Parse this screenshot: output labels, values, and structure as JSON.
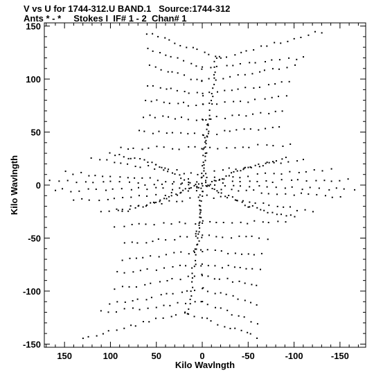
{
  "header": {
    "title": "V vs U for 1744-312.U BAND.1   Source:1744-312",
    "subtitle": "Ants * - *     Stokes I  IF# 1 - 2  Chan# 1"
  },
  "chart_data": {
    "type": "scatter",
    "title": "V vs U for 1744-312.U BAND.1   Source:1744-312",
    "subtitle": "Ants * - *     Stokes I  IF# 1 - 2  Chan# 1",
    "xlabel": "Kilo Wavlngth",
    "ylabel": "Kilo Wavlngth",
    "xlim": [
      172,
      -178
    ],
    "ylim": [
      -153,
      153
    ],
    "x_axis_reversed": true,
    "xticks": [
      150,
      100,
      50,
      0,
      -50,
      -100,
      -150
    ],
    "yticks": [
      150,
      100,
      50,
      0,
      -50,
      -100,
      -150
    ],
    "xtick_labels": [
      "150",
      "100",
      "50",
      "0",
      "-50",
      "-100",
      "-150"
    ],
    "ytick_labels": [
      "150",
      "100",
      "50",
      "0",
      "-50",
      "-100",
      "-150"
    ],
    "marker": "dot",
    "marker_color": "#000000",
    "grid": false,
    "series": [
      {
        "points_description": "uv-coverage tracks (point-symmetric pattern)",
        "tracks": [
          {
            "from": [
              60,
              143
            ],
            "to": [
              -20,
              120
            ],
            "n": 14
          },
          {
            "from": [
              -20,
              120
            ],
            "to": [
              -130,
              145
            ],
            "n": 16
          },
          {
            "from": [
              60,
              130
            ],
            "to": [
              0,
              110
            ],
            "n": 10
          },
          {
            "from": [
              0,
              110
            ],
            "to": [
              -110,
              120
            ],
            "n": 14
          },
          {
            "from": [
              58,
              112
            ],
            "to": [
              0,
              98
            ],
            "n": 10
          },
          {
            "from": [
              0,
              98
            ],
            "to": [
              -100,
              112
            ],
            "n": 14
          },
          {
            "from": [
              60,
              95
            ],
            "to": [
              0,
              85
            ],
            "n": 10
          },
          {
            "from": [
              0,
              85
            ],
            "to": [
              -95,
              98
            ],
            "n": 13
          },
          {
            "from": [
              62,
              80
            ],
            "to": [
              0,
              75
            ],
            "n": 10
          },
          {
            "from": [
              0,
              75
            ],
            "to": [
              -92,
              83
            ],
            "n": 12
          },
          {
            "from": [
              65,
              65
            ],
            "to": [
              0,
              62
            ],
            "n": 10
          },
          {
            "from": [
              0,
              62
            ],
            "to": [
              -88,
              70
            ],
            "n": 12
          },
          {
            "from": [
              70,
              50
            ],
            "to": [
              0,
              48
            ],
            "n": 10
          },
          {
            "from": [
              0,
              48
            ],
            "to": [
              -85,
              55
            ],
            "n": 12
          },
          {
            "from": [
              90,
              35
            ],
            "to": [
              0,
              35
            ],
            "n": 12
          },
          {
            "from": [
              0,
              35
            ],
            "to": [
              -95,
              38
            ],
            "n": 12
          },
          {
            "from": [
              120,
              25
            ],
            "to": [
              5,
              10
            ],
            "n": 16
          },
          {
            "from": [
              -5,
              -10
            ],
            "to": [
              -120,
              -25
            ],
            "n": 16
          },
          {
            "from": [
              150,
              12
            ],
            "to": [
              5,
              2
            ],
            "n": 18
          },
          {
            "from": [
              -5,
              -2
            ],
            "to": [
              -150,
              -12
            ],
            "n": 18
          },
          {
            "from": [
              165,
              5
            ],
            "to": [
              5,
              -1
            ],
            "n": 18
          },
          {
            "from": [
              -5,
              1
            ],
            "to": [
              -165,
              -5
            ],
            "n": 18
          },
          {
            "from": [
              160,
              -5
            ],
            "to": [
              5,
              -3
            ],
            "n": 18
          },
          {
            "from": [
              -5,
              3
            ],
            "to": [
              -160,
              5
            ],
            "n": 18
          },
          {
            "from": [
              140,
              -15
            ],
            "to": [
              5,
              -6
            ],
            "n": 16
          },
          {
            "from": [
              -5,
              6
            ],
            "to": [
              -140,
              15
            ],
            "n": 16
          },
          {
            "from": [
              110,
              -25
            ],
            "to": [
              5,
              -12
            ],
            "n": 14
          },
          {
            "from": [
              -5,
              12
            ],
            "to": [
              -110,
              25
            ],
            "n": 14
          },
          {
            "from": [
              95,
              -38
            ],
            "to": [
              0,
              -35
            ],
            "n": 12
          },
          {
            "from": [
              0,
              -35
            ],
            "to": [
              -90,
              -35
            ],
            "n": 12
          },
          {
            "from": [
              85,
              -55
            ],
            "to": [
              0,
              -48
            ],
            "n": 12
          },
          {
            "from": [
              0,
              -48
            ],
            "to": [
              -70,
              -50
            ],
            "n": 10
          },
          {
            "from": [
              88,
              -70
            ],
            "to": [
              0,
              -62
            ],
            "n": 12
          },
          {
            "from": [
              0,
              -62
            ],
            "to": [
              -65,
              -65
            ],
            "n": 10
          },
          {
            "from": [
              92,
              -83
            ],
            "to": [
              0,
              -75
            ],
            "n": 12
          },
          {
            "from": [
              0,
              -75
            ],
            "to": [
              -62,
              -80
            ],
            "n": 10
          },
          {
            "from": [
              95,
              -98
            ],
            "to": [
              0,
              -85
            ],
            "n": 13
          },
          {
            "from": [
              0,
              -85
            ],
            "to": [
              -60,
              -95
            ],
            "n": 10
          },
          {
            "from": [
              100,
              -112
            ],
            "to": [
              0,
              -98
            ],
            "n": 14
          },
          {
            "from": [
              0,
              -98
            ],
            "to": [
              -58,
              -112
            ],
            "n": 10
          },
          {
            "from": [
              110,
              -120
            ],
            "to": [
              0,
              -110
            ],
            "n": 14
          },
          {
            "from": [
              0,
              -110
            ],
            "to": [
              -60,
              -130
            ],
            "n": 10
          },
          {
            "from": [
              130,
              -145
            ],
            "to": [
              20,
              -120
            ],
            "n": 16
          },
          {
            "from": [
              20,
              -120
            ],
            "to": [
              -60,
              -143
            ],
            "n": 14
          },
          {
            "from": [
              -15,
              120
            ],
            "to": [
              15,
              -120
            ],
            "n": 60
          },
          {
            "from": [
              -5,
              60
            ],
            "to": [
              5,
              -60
            ],
            "n": 30
          },
          {
            "from": [
              5,
              0
            ],
            "to": [
              50,
              20
            ],
            "n": 14
          },
          {
            "from": [
              5,
              0
            ],
            "to": [
              45,
              -15
            ],
            "n": 14
          },
          {
            "from": [
              -5,
              0
            ],
            "to": [
              -50,
              -20
            ],
            "n": 14
          },
          {
            "from": [
              -5,
              0
            ],
            "to": [
              -45,
              15
            ],
            "n": 14
          },
          {
            "from": [
              50,
              20
            ],
            "to": [
              100,
              30
            ],
            "n": 12
          },
          {
            "from": [
              -50,
              -20
            ],
            "to": [
              -100,
              -30
            ],
            "n": 12
          },
          {
            "from": [
              45,
              -15
            ],
            "to": [
              90,
              -25
            ],
            "n": 12
          },
          {
            "from": [
              -45,
              15
            ],
            "to": [
              -90,
              25
            ],
            "n": 12
          }
        ]
      }
    ]
  }
}
